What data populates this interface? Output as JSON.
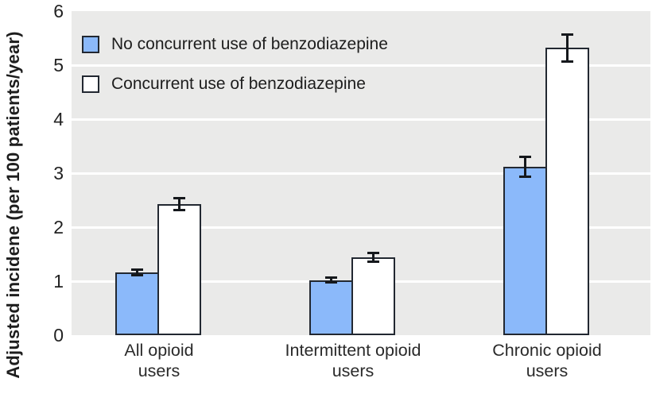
{
  "chart_data": {
    "type": "bar",
    "title": "",
    "xlabel": "",
    "ylabel": "Adjusted incidene (per 100 patients/year)",
    "ylim": [
      0,
      6
    ],
    "yticks": [
      0,
      1,
      2,
      3,
      4,
      5,
      6
    ],
    "grid": "horizontal white gridlines on light gray plot background",
    "legend_position": "top-left inside plot area",
    "categories": [
      "All opioid users",
      "Intermittent opioid users",
      "Chronic opioid users"
    ],
    "category_labels": [
      "All opioid\nusers",
      "Intermittent opioid\nusers",
      "Chronic opioid\nusers"
    ],
    "series": [
      {
        "name": "No concurrent use of benzodiazepine",
        "color": "#8BB9FA",
        "values": [
          1.16,
          1.02,
          3.12
        ],
        "errors": [
          0.05,
          0.04,
          0.18
        ]
      },
      {
        "name": "Concurrent use of benzodiazepine",
        "color": "#FFFFFF",
        "values": [
          2.42,
          1.44,
          5.32
        ],
        "errors": [
          0.11,
          0.08,
          0.25
        ]
      }
    ]
  },
  "colors": {
    "page_bg": "#FFFFFF",
    "plot_bg": "#EAEAE9",
    "gridline": "#FFFFFF",
    "bar_outline": "#222831",
    "error_bar": "#15181C",
    "text": "#1D1D1D"
  }
}
